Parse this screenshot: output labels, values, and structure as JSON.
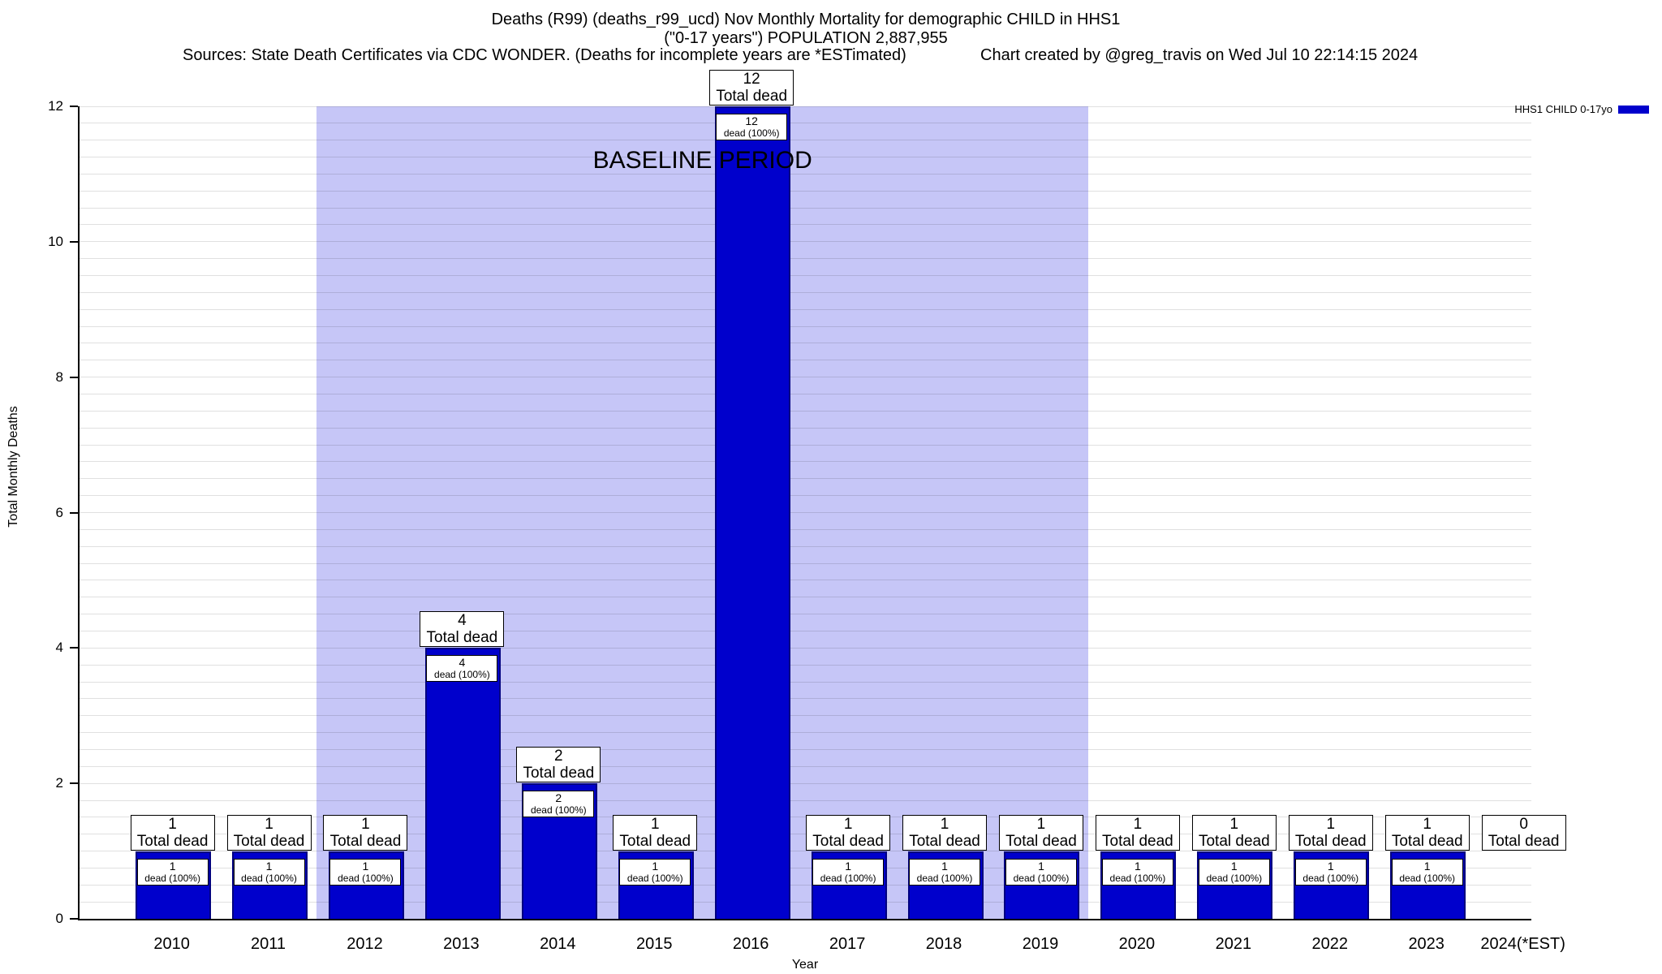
{
  "chart_data": {
    "type": "bar",
    "title_line1": "Deaths (R99) (deaths_r99_ucd) Nov Monthly Mortality for demographic CHILD in HHS1",
    "title_line2": "(\"0-17 years\") POPULATION 2,887,955",
    "source_note": "Sources: State Death Certificates via CDC WONDER. (Deaths for incomplete years are *ESTimated)",
    "credit": "Chart created by @greg_travis on Wed Jul 10 22:14:15 2024",
    "xlabel": "Year",
    "ylabel": "Total Monthly Deaths",
    "ylim": [
      0,
      12
    ],
    "ytick_step": 2,
    "minor_grid_step": 0.25,
    "categories": [
      "2010",
      "2011",
      "2012",
      "2013",
      "2014",
      "2015",
      "2016",
      "2017",
      "2018",
      "2019",
      "2020",
      "2021",
      "2022",
      "2023",
      "2024(*EST)"
    ],
    "values": [
      1,
      1,
      1,
      4,
      2,
      1,
      12,
      1,
      1,
      1,
      1,
      1,
      1,
      1,
      0
    ],
    "total_label_suffix": "Total dead",
    "inner_label_suffix": "dead (100%)",
    "legend": {
      "label": "HHS1 CHILD 0-17yo",
      "color": "#0000cc"
    },
    "baseline": {
      "label": "BASELINE PERIOD",
      "start_category": "2012",
      "end_category": "2019",
      "color": "#c6c6f7"
    },
    "colors": {
      "bar": "#0000cc",
      "bar_border": "#000080",
      "grid": "rgba(0,0,0,0.12)",
      "axis": "#000000"
    }
  }
}
